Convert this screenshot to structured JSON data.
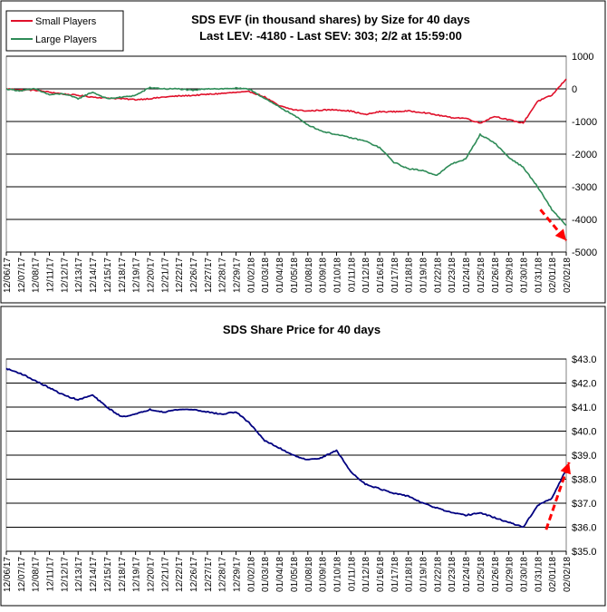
{
  "chart_data": [
    {
      "type": "line",
      "title": "SDS EVF (in thousand shares) by Size for 40 days",
      "subtitle": "Last LEV: -4180 - Last SEV: 303; 2/2 at 15:59:00",
      "legend_position": "top-left",
      "grid": true,
      "y_axis_side": "right",
      "ylim": [
        -5000,
        1000
      ],
      "yticks": [
        1000,
        0,
        -1000,
        -2000,
        -3000,
        -4000,
        -5000
      ],
      "ytick_labels": [
        "1000",
        "0",
        "-1000",
        "-2000",
        "-3000",
        "-4000",
        "-5000"
      ],
      "x_tick_labels": [
        "12/06/17",
        "12/07/17",
        "12/08/17",
        "12/11/17",
        "12/12/17",
        "12/13/17",
        "12/14/17",
        "12/15/17",
        "12/18/17",
        "12/19/17",
        "12/20/17",
        "12/21/17",
        "12/22/17",
        "12/26/17",
        "12/27/17",
        "12/28/17",
        "12/29/17",
        "01/02/18",
        "01/03/18",
        "01/04/18",
        "01/05/18",
        "01/08/18",
        "01/09/18",
        "01/10/18",
        "01/11/18",
        "01/12/18",
        "01/16/18",
        "01/17/18",
        "01/18/18",
        "01/19/18",
        "01/22/18",
        "01/23/18",
        "01/24/18",
        "01/25/18",
        "01/26/18",
        "01/29/18",
        "01/30/18",
        "01/31/18",
        "02/01/18",
        "02/02/18"
      ],
      "series": [
        {
          "name": "Small Players",
          "color": "#e0102a",
          "values": [
            0,
            -30,
            -40,
            -100,
            -160,
            -200,
            -250,
            -280,
            -300,
            -330,
            -300,
            -250,
            -220,
            -200,
            -170,
            -140,
            -110,
            -90,
            -250,
            -520,
            -640,
            -680,
            -650,
            -640,
            -680,
            -790,
            -700,
            -700,
            -680,
            -720,
            -800,
            -880,
            -900,
            -1050,
            -840,
            -950,
            -1050,
            -380,
            -200,
            303
          ]
        },
        {
          "name": "Large Players",
          "color": "#2e8b57",
          "values": [
            0,
            -60,
            0,
            -180,
            -150,
            -300,
            -100,
            -300,
            -260,
            -200,
            40,
            0,
            0,
            -50,
            10,
            0,
            20,
            -20,
            -300,
            -550,
            -800,
            -1100,
            -1300,
            -1400,
            -1500,
            -1600,
            -1800,
            -2250,
            -2450,
            -2500,
            -2650,
            -2300,
            -2150,
            -1400,
            -1650,
            -2100,
            -2400,
            -3000,
            -3700,
            -4180
          ]
        }
      ],
      "annotation": "red dashed trend arrow pointing down at the last days"
    },
    {
      "type": "line",
      "title": "SDS Share Price for 40 days",
      "grid": true,
      "y_axis_side": "right",
      "ylim": [
        35.0,
        43.0
      ],
      "yticks": [
        43,
        42,
        41,
        40,
        39,
        38,
        37,
        36,
        35
      ],
      "ytick_labels": [
        "$43.0",
        "$42.0",
        "$41.0",
        "$40.0",
        "$39.0",
        "$38.0",
        "$37.0",
        "$36.0",
        "$35.0"
      ],
      "x_tick_labels": [
        "12/06/17",
        "12/07/17",
        "12/08/17",
        "12/11/17",
        "12/12/17",
        "12/13/17",
        "12/14/17",
        "12/15/17",
        "12/18/17",
        "12/19/17",
        "12/20/17",
        "12/21/17",
        "12/22/17",
        "12/26/17",
        "12/27/17",
        "12/28/17",
        "12/29/17",
        "01/02/18",
        "01/03/18",
        "01/04/18",
        "01/05/18",
        "01/08/18",
        "01/09/18",
        "01/10/18",
        "01/11/18",
        "01/12/18",
        "01/16/18",
        "01/17/18",
        "01/18/18",
        "01/19/18",
        "01/22/18",
        "01/23/18",
        "01/24/18",
        "01/25/18",
        "01/26/18",
        "01/29/18",
        "01/30/18",
        "01/31/18",
        "02/01/18",
        "02/02/18"
      ],
      "series": [
        {
          "color": "#000080",
          "values": [
            42.6,
            42.4,
            42.1,
            41.8,
            41.5,
            41.3,
            41.5,
            41.0,
            40.6,
            40.7,
            40.9,
            40.8,
            40.9,
            40.9,
            40.8,
            40.7,
            40.8,
            40.3,
            39.6,
            39.3,
            39.0,
            38.8,
            38.9,
            39.2,
            38.3,
            37.8,
            37.6,
            37.4,
            37.3,
            37.0,
            36.8,
            36.6,
            36.5,
            36.6,
            36.4,
            36.2,
            36.0,
            36.9,
            37.2,
            38.4
          ]
        }
      ],
      "annotation": "red dashed trend arrow pointing up at the last days"
    }
  ]
}
